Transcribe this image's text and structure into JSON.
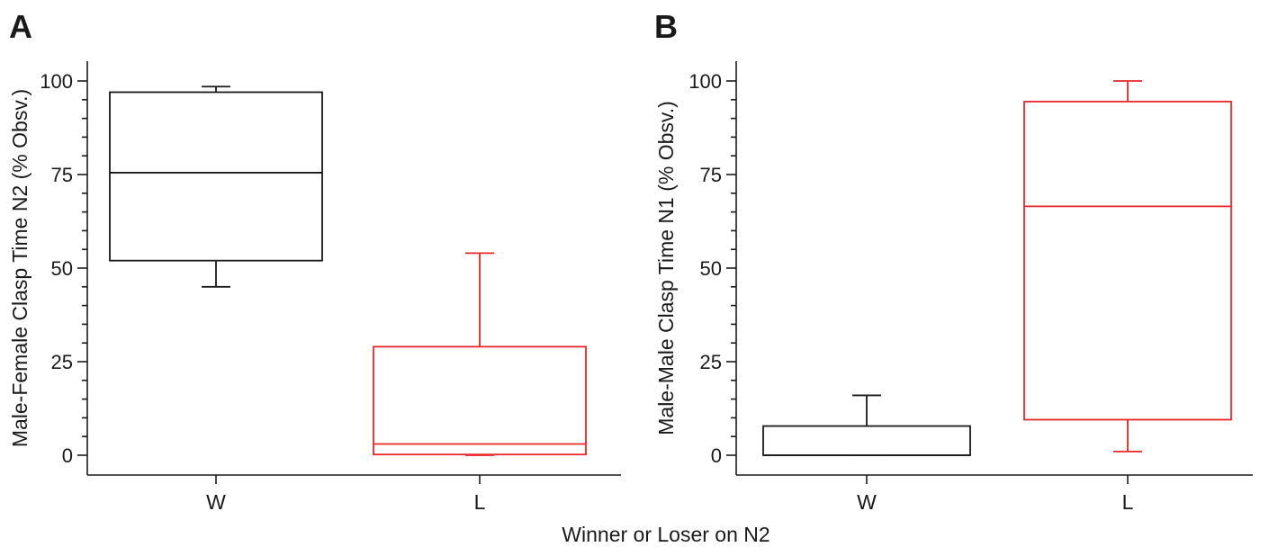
{
  "shared_xlabel": "Winner or Loser on N2",
  "chart_data": [
    {
      "type": "box",
      "panel_label": "A",
      "ylabel": "Male-Female Clasp Time N2 (% Obsv.)",
      "xlabel": "",
      "ylim": [
        -5,
        105
      ],
      "yticks": [
        0,
        25,
        50,
        75,
        100
      ],
      "categories": [
        "W",
        "L"
      ],
      "grid": false,
      "boxes": [
        {
          "category": "W",
          "whisker_low": 45,
          "q1": 52,
          "median": 75.5,
          "q3": 97,
          "whisker_high": 98.5,
          "color": "#1a1a1a"
        },
        {
          "category": "L",
          "whisker_low": 0,
          "q1": 0.2,
          "median": 3,
          "q3": 29,
          "whisker_high": 54,
          "color": "#e8262a"
        }
      ]
    },
    {
      "type": "box",
      "panel_label": "B",
      "ylabel": "Male-Male Clasp Time N1 (% Obsv.)",
      "xlabel": "",
      "ylim": [
        -5,
        105
      ],
      "yticks": [
        0,
        25,
        50,
        75,
        100
      ],
      "categories": [
        "W",
        "L"
      ],
      "grid": false,
      "boxes": [
        {
          "category": "W",
          "whisker_low": 0,
          "q1": 0,
          "median": 0,
          "q3": 7.8,
          "whisker_high": 16,
          "color": "#1a1a1a"
        },
        {
          "category": "L",
          "whisker_low": 1,
          "q1": 9.5,
          "median": 66.5,
          "q3": 94.5,
          "whisker_high": 100,
          "color": "#e8262a"
        }
      ]
    }
  ]
}
